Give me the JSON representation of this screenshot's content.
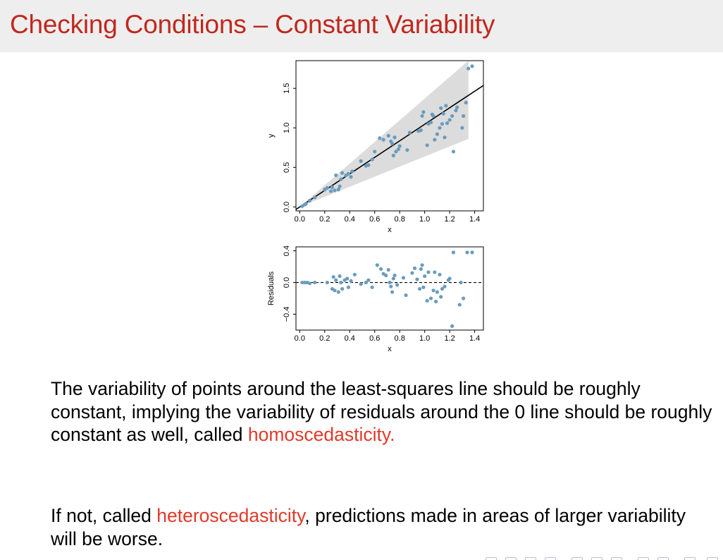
{
  "slide": {
    "title": "Checking Conditions – Constant Variability"
  },
  "text": {
    "para1_main": "The variability of points around the least-squares line should be roughly constant, implying the variability of residuals around the 0 line should be roughly constant as well, called ",
    "para1_highlight": "homoscedasticity.",
    "para2_prefix": "If not, called ",
    "para2_highlight": "heteroscedasticity",
    "para2_suffix": ", predictions made in areas of larger variability will be worse."
  },
  "colors": {
    "title": "#c0281e",
    "highlight": "#e03a2a",
    "point": "#6a9bbd",
    "band": "#dcdcdc",
    "nav": "#b9bde0"
  },
  "chart_data": [
    {
      "type": "scatter",
      "title": "",
      "xlabel": "x",
      "ylabel": "y",
      "xlim": [
        -0.03,
        1.47
      ],
      "ylim": [
        -0.05,
        1.85
      ],
      "xticks": [
        0.0,
        0.2,
        0.4,
        0.6,
        0.8,
        1.0,
        1.2,
        1.4
      ],
      "xtick_labels": [
        "0.0",
        "0.2",
        "0.4",
        "0.6",
        "0.8",
        "1.0",
        "1.2",
        "1.4"
      ],
      "yticks": [
        0.0,
        0.5,
        1.0,
        1.5
      ],
      "ytick_labels": [
        "0.0",
        "0.5",
        "1.0",
        "1.5"
      ],
      "grid": false,
      "band": {
        "x": [
          0.0,
          1.35
        ],
        "lower": [
          0.0,
          0.86
        ],
        "upper": [
          0.0,
          1.85
        ]
      },
      "fit_line": {
        "intercept": 0.0,
        "slope": 1.045
      },
      "series": [
        {
          "points": [
            [
              0.02,
              0.01
            ],
            [
              0.04,
              0.03
            ],
            [
              0.05,
              0.04
            ],
            [
              0.08,
              0.08
            ],
            [
              0.12,
              0.12
            ],
            [
              0.2,
              0.22
            ],
            [
              0.22,
              0.24
            ],
            [
              0.25,
              0.2
            ],
            [
              0.26,
              0.25
            ],
            [
              0.28,
              0.21
            ],
            [
              0.29,
              0.4
            ],
            [
              0.31,
              0.22
            ],
            [
              0.32,
              0.26
            ],
            [
              0.33,
              0.35
            ],
            [
              0.34,
              0.43
            ],
            [
              0.37,
              0.4
            ],
            [
              0.39,
              0.42
            ],
            [
              0.41,
              0.38
            ],
            [
              0.42,
              0.45
            ],
            [
              0.49,
              0.58
            ],
            [
              0.53,
              0.52
            ],
            [
              0.55,
              0.53
            ],
            [
              0.58,
              0.6
            ],
            [
              0.6,
              0.7
            ],
            [
              0.64,
              0.87
            ],
            [
              0.67,
              0.85
            ],
            [
              0.71,
              0.9
            ],
            [
              0.73,
              0.83
            ],
            [
              0.74,
              0.8
            ],
            [
              0.75,
              0.65
            ],
            [
              0.76,
              0.88
            ],
            [
              0.77,
              0.7
            ],
            [
              0.79,
              0.73
            ],
            [
              0.8,
              0.77
            ],
            [
              0.86,
              0.72
            ],
            [
              0.88,
              0.94
            ],
            [
              0.95,
              0.96
            ],
            [
              0.97,
              0.97
            ],
            [
              0.98,
              1.15
            ],
            [
              0.99,
              1.2
            ],
            [
              1.02,
              0.78
            ],
            [
              1.03,
              1.05
            ],
            [
              1.05,
              1.07
            ],
            [
              1.06,
              1.17
            ],
            [
              1.07,
              1.15
            ],
            [
              1.08,
              0.85
            ],
            [
              1.1,
              0.92
            ],
            [
              1.12,
              1.0
            ],
            [
              1.13,
              1.25
            ],
            [
              1.14,
              1.05
            ],
            [
              1.15,
              1.18
            ],
            [
              1.16,
              0.88
            ],
            [
              1.17,
              1.28
            ],
            [
              1.18,
              1.06
            ],
            [
              1.2,
              1.1
            ],
            [
              1.22,
              1.15
            ],
            [
              1.23,
              0.7
            ],
            [
              1.25,
              1.22
            ],
            [
              1.26,
              1.26
            ],
            [
              1.3,
              1.0
            ],
            [
              1.31,
              1.15
            ],
            [
              1.33,
              1.32
            ],
            [
              1.35,
              1.75
            ],
            [
              1.38,
              1.78
            ]
          ]
        }
      ]
    },
    {
      "type": "scatter",
      "title": "",
      "xlabel": "x",
      "ylabel": "Residuals",
      "xlim": [
        -0.03,
        1.47
      ],
      "ylim": [
        -0.6,
        0.45
      ],
      "xticks": [
        0.0,
        0.2,
        0.4,
        0.6,
        0.8,
        1.0,
        1.2,
        1.4
      ],
      "xtick_labels": [
        "0.0",
        "0.2",
        "0.4",
        "0.6",
        "0.8",
        "1.0",
        "1.2",
        "1.4"
      ],
      "yticks": [
        -0.4,
        0.0,
        0.4
      ],
      "ytick_labels": [
        "−0.4",
        "0.0",
        "0.4"
      ],
      "grid": false,
      "reference_line": {
        "y": 0.0,
        "style": "dashed"
      },
      "series": [
        {
          "points": [
            [
              0.02,
              0.0
            ],
            [
              0.04,
              0.0
            ],
            [
              0.06,
              0.0
            ],
            [
              0.08,
              -0.01
            ],
            [
              0.12,
              0.0
            ],
            [
              0.22,
              0.0
            ],
            [
              0.26,
              -0.08
            ],
            [
              0.27,
              0.07
            ],
            [
              0.28,
              -0.1
            ],
            [
              0.29,
              0.03
            ],
            [
              0.31,
              -0.12
            ],
            [
              0.32,
              0.08
            ],
            [
              0.33,
              0.0
            ],
            [
              0.34,
              -0.08
            ],
            [
              0.36,
              0.03
            ],
            [
              0.38,
              0.05
            ],
            [
              0.39,
              -0.06
            ],
            [
              0.41,
              0.02
            ],
            [
              0.44,
              0.1
            ],
            [
              0.49,
              -0.02
            ],
            [
              0.53,
              0.0
            ],
            [
              0.55,
              0.03
            ],
            [
              0.58,
              -0.06
            ],
            [
              0.62,
              0.22
            ],
            [
              0.65,
              0.17
            ],
            [
              0.67,
              0.11
            ],
            [
              0.69,
              0.09
            ],
            [
              0.71,
              0.16
            ],
            [
              0.72,
              0.0
            ],
            [
              0.73,
              -0.05
            ],
            [
              0.74,
              -0.12
            ],
            [
              0.75,
              0.05
            ],
            [
              0.76,
              0.09
            ],
            [
              0.78,
              -0.03
            ],
            [
              0.83,
              0.06
            ],
            [
              0.85,
              -0.16
            ],
            [
              0.9,
              0.12
            ],
            [
              0.92,
              0.18
            ],
            [
              0.94,
              0.04
            ],
            [
              0.96,
              -0.08
            ],
            [
              0.97,
              0.17
            ],
            [
              0.98,
              0.22
            ],
            [
              0.99,
              -0.06
            ],
            [
              1.0,
              0.08
            ],
            [
              1.02,
              -0.23
            ],
            [
              1.03,
              0.13
            ],
            [
              1.05,
              -0.2
            ],
            [
              1.07,
              -0.1
            ],
            [
              1.08,
              0.13
            ],
            [
              1.09,
              -0.24
            ],
            [
              1.1,
              -0.12
            ],
            [
              1.12,
              0.1
            ],
            [
              1.14,
              -0.08
            ],
            [
              1.16,
              -0.05
            ],
            [
              1.19,
              0.03
            ],
            [
              1.22,
              -0.55
            ],
            [
              1.23,
              0.38
            ],
            [
              1.28,
              -0.28
            ],
            [
              1.31,
              -0.2
            ],
            [
              1.34,
              0.38
            ],
            [
              1.38,
              0.38
            ],
            [
              1.29,
              0.0
            ],
            [
              1.2,
              0.05
            ],
            [
              1.13,
              -0.18
            ]
          ]
        }
      ]
    }
  ]
}
